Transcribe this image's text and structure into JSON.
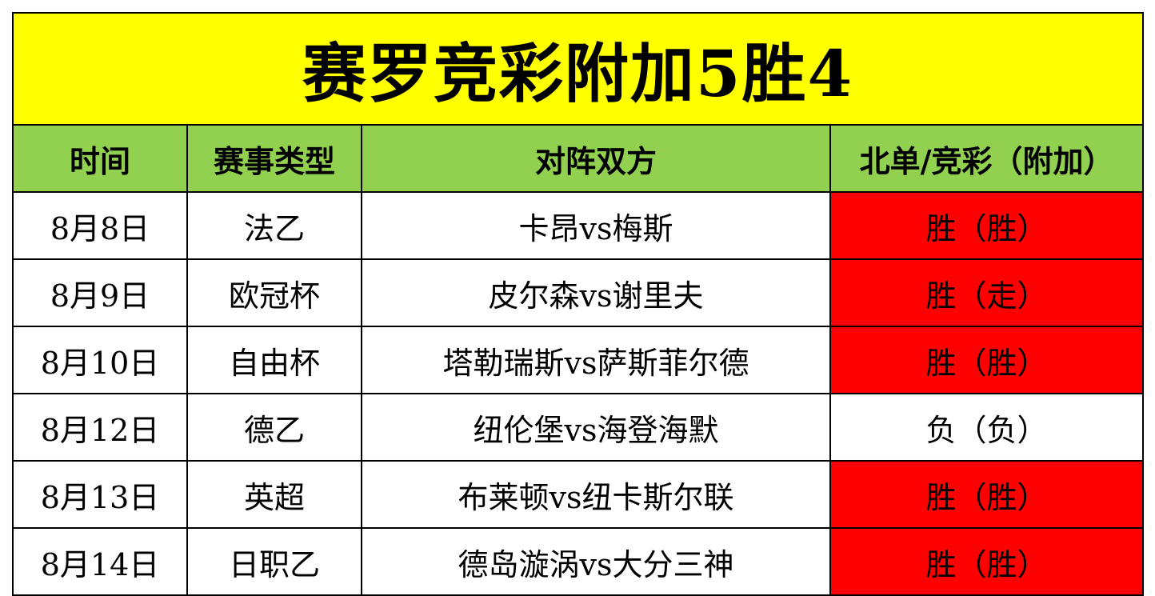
{
  "title": "赛罗竞彩附加5胜4",
  "headers": {
    "time": "时间",
    "event_type": "赛事类型",
    "matchup": "对阵双方",
    "result": "北单/竞彩（附加）"
  },
  "colors": {
    "title_bg": "#ffff00",
    "header_bg": "#92d050",
    "win_bg": "#ff0000",
    "loss_bg": "#ffffff"
  },
  "rows": [
    {
      "time": "8月8日",
      "event_type": "法乙",
      "matchup": "卡昂vs梅斯",
      "result": "胜（胜）",
      "status": "win"
    },
    {
      "time": "8月9日",
      "event_type": "欧冠杯",
      "matchup": "皮尔森vs谢里夫",
      "result": "胜（走）",
      "status": "win"
    },
    {
      "time": "8月10日",
      "event_type": "自由杯",
      "matchup": "塔勒瑞斯vs萨斯菲尔德",
      "result": "胜（胜）",
      "status": "win"
    },
    {
      "time": "8月12日",
      "event_type": "德乙",
      "matchup": "纽伦堡vs海登海默",
      "result": "负（负）",
      "status": "loss"
    },
    {
      "time": "8月13日",
      "event_type": "英超",
      "matchup": "布莱顿vs纽卡斯尔联",
      "result": "胜（胜）",
      "status": "win"
    },
    {
      "time": "8月14日",
      "event_type": "日职乙",
      "matchup": "德岛漩涡vs大分三神",
      "result": "胜（胜）",
      "status": "win"
    }
  ]
}
